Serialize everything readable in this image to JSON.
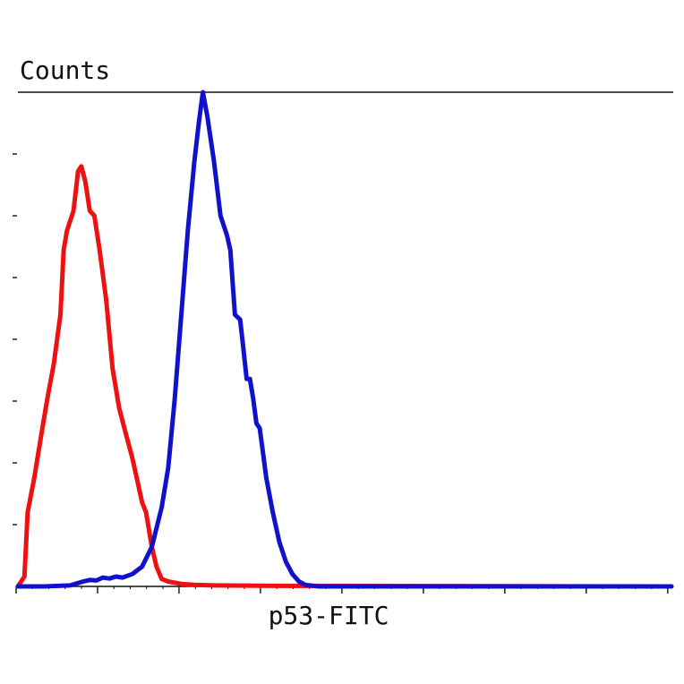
{
  "chart_data": {
    "type": "line",
    "title": "",
    "xlabel": "p53-FITC",
    "ylabel": "Counts",
    "xlim": [
      0,
      100
    ],
    "ylim": [
      0,
      100
    ],
    "grid": false,
    "legend": "none",
    "x_tick_count": 9,
    "y_tick_count": 8,
    "series": [
      {
        "color": "#ee1111",
        "points": [
          [
            0,
            0
          ],
          [
            1,
            2
          ],
          [
            1.5,
            15
          ],
          [
            2.5,
            22
          ],
          [
            3.5,
            30
          ],
          [
            4.5,
            38
          ],
          [
            5.5,
            45
          ],
          [
            6.5,
            55
          ],
          [
            7,
            68
          ],
          [
            7.5,
            72
          ],
          [
            8.5,
            76
          ],
          [
            9.2,
            84
          ],
          [
            9.7,
            85
          ],
          [
            10.3,
            82
          ],
          [
            11,
            76
          ],
          [
            11.7,
            75
          ],
          [
            12.5,
            68
          ],
          [
            13.5,
            58
          ],
          [
            14.5,
            44
          ],
          [
            15.5,
            36
          ],
          [
            16.5,
            31
          ],
          [
            17.5,
            26
          ],
          [
            18.5,
            20
          ],
          [
            19,
            17
          ],
          [
            19.6,
            15
          ],
          [
            20.5,
            8
          ],
          [
            21.2,
            4
          ],
          [
            22,
            1.5
          ],
          [
            23,
            1
          ],
          [
            25,
            0.5
          ],
          [
            27,
            0.3
          ],
          [
            30,
            0.2
          ],
          [
            40,
            0.1
          ],
          [
            100,
            0
          ]
        ]
      },
      {
        "color": "#1111cc",
        "points": [
          [
            0,
            0
          ],
          [
            4,
            0
          ],
          [
            8,
            0.2
          ],
          [
            9,
            0.6
          ],
          [
            10,
            1
          ],
          [
            11,
            1.3
          ],
          [
            12,
            1.2
          ],
          [
            13,
            1.8
          ],
          [
            14,
            1.6
          ],
          [
            15,
            2
          ],
          [
            16,
            1.8
          ],
          [
            17.5,
            2.5
          ],
          [
            19,
            4
          ],
          [
            20.5,
            8
          ],
          [
            22,
            16
          ],
          [
            23,
            24
          ],
          [
            24,
            38
          ],
          [
            25,
            55
          ],
          [
            26,
            72
          ],
          [
            27,
            86
          ],
          [
            27.7,
            94
          ],
          [
            28.3,
            100
          ],
          [
            29,
            95
          ],
          [
            30,
            86
          ],
          [
            31,
            75
          ],
          [
            32,
            71
          ],
          [
            32.5,
            68
          ],
          [
            33.2,
            55
          ],
          [
            34,
            54
          ],
          [
            34.5,
            48
          ],
          [
            35,
            42
          ],
          [
            35.5,
            42
          ],
          [
            36,
            38
          ],
          [
            36.5,
            33
          ],
          [
            37,
            32
          ],
          [
            37.5,
            27
          ],
          [
            38,
            22
          ],
          [
            39,
            15
          ],
          [
            40,
            9
          ],
          [
            41,
            5
          ],
          [
            42,
            2.5
          ],
          [
            43,
            1
          ],
          [
            44,
            0.3
          ],
          [
            46,
            0
          ],
          [
            100,
            0
          ]
        ]
      }
    ]
  }
}
